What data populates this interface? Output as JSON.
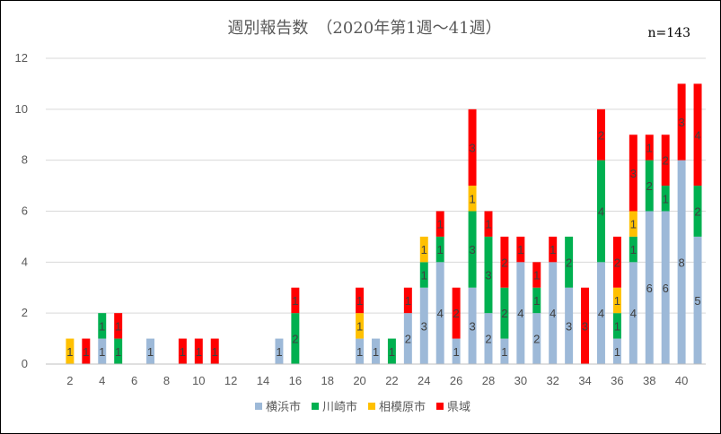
{
  "chart_data": {
    "type": "bar",
    "stacked": true,
    "title": "週別報告数　（2020年第1週～41週）",
    "annotation": "n=143",
    "xlabel": "",
    "ylabel": "",
    "ylim": [
      0,
      12
    ],
    "yticks": [
      0,
      2,
      4,
      6,
      8,
      10,
      12
    ],
    "xticks": [
      2,
      4,
      6,
      8,
      10,
      12,
      14,
      16,
      18,
      20,
      22,
      24,
      26,
      28,
      30,
      32,
      34,
      36,
      38,
      40
    ],
    "grid": true,
    "legend_position": "bottom",
    "categories": [
      1,
      2,
      3,
      4,
      5,
      6,
      7,
      8,
      9,
      10,
      11,
      12,
      13,
      14,
      15,
      16,
      17,
      18,
      19,
      20,
      21,
      22,
      23,
      24,
      25,
      26,
      27,
      28,
      29,
      30,
      31,
      32,
      33,
      34,
      35,
      36,
      37,
      38,
      39,
      40,
      41
    ],
    "series": [
      {
        "name": "横浜市",
        "color": "#9DB9D8",
        "values": [
          0,
          0,
          0,
          1,
          0,
          0,
          1,
          0,
          0,
          0,
          0,
          0,
          0,
          0,
          1,
          0,
          0,
          0,
          0,
          1,
          1,
          0,
          2,
          3,
          4,
          1,
          3,
          2,
          1,
          4,
          2,
          4,
          3,
          0,
          4,
          1,
          4,
          6,
          6,
          8,
          5
        ]
      },
      {
        "name": "川崎市",
        "color": "#00B050",
        "values": [
          0,
          0,
          0,
          1,
          1,
          0,
          0,
          0,
          0,
          0,
          0,
          0,
          0,
          0,
          0,
          2,
          0,
          0,
          0,
          0,
          0,
          1,
          0,
          1,
          1,
          0,
          3,
          3,
          2,
          0,
          1,
          0,
          2,
          0,
          4,
          1,
          1,
          2,
          1,
          0,
          2
        ]
      },
      {
        "name": "相模原市",
        "color": "#FFC000",
        "values": [
          0,
          1,
          0,
          0,
          0,
          0,
          0,
          0,
          0,
          0,
          0,
          0,
          0,
          0,
          0,
          0,
          0,
          0,
          0,
          1,
          0,
          0,
          0,
          1,
          0,
          0,
          1,
          0,
          0,
          0,
          0,
          0,
          0,
          0,
          0,
          1,
          1,
          0,
          0,
          0,
          0
        ]
      },
      {
        "name": "県域",
        "color": "#FF0000",
        "values": [
          0,
          0,
          1,
          0,
          1,
          0,
          0,
          0,
          1,
          1,
          1,
          0,
          0,
          0,
          0,
          1,
          0,
          0,
          0,
          1,
          0,
          0,
          1,
          0,
          1,
          2,
          3,
          1,
          2,
          1,
          1,
          1,
          0,
          3,
          2,
          2,
          3,
          1,
          2,
          3,
          4
        ]
      }
    ]
  }
}
